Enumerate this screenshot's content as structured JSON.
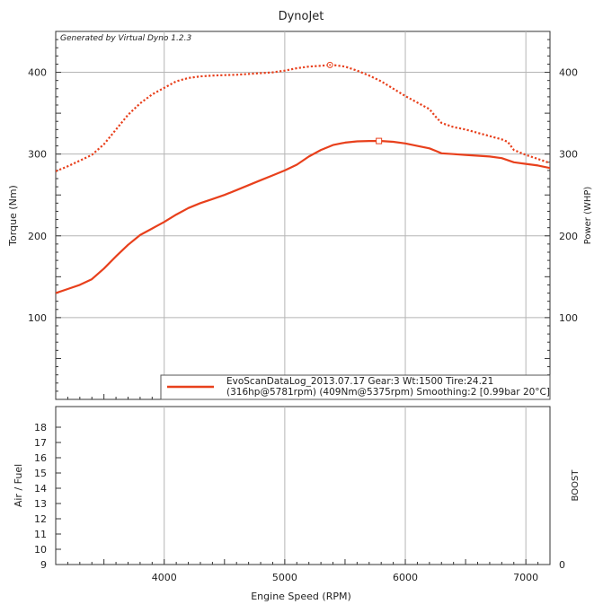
{
  "window": {
    "title": "DynoJet",
    "watermark": "Generated by Virtual Dyno 1.2.3"
  },
  "colors": {
    "series": "#e8401c",
    "grid": "#b5b5b5",
    "frame": "#333333",
    "legend_bg": "#ffffff"
  },
  "chart_data": [
    {
      "type": "line",
      "title": "DynoJet",
      "xlabel": "Engine Speed (RPM)",
      "ylabel_left": "Torque (Nm)",
      "ylabel_right": "Power (WHP)",
      "xlim": [
        3100,
        7200
      ],
      "ylim": [
        0,
        450
      ],
      "x_ticks": [
        4000,
        5000,
        6000,
        7000
      ],
      "y_ticks_left": [
        100,
        200,
        300,
        400
      ],
      "y_ticks_right": [
        100,
        200,
        300,
        400
      ],
      "grid": true,
      "legend_position": "bottom-right",
      "legend": {
        "line1": "EvoScanDataLog_2013.07.17 Gear:3 Wt:1500 Tire:24.21",
        "line2": "(316hp@5781rpm) (409Nm@5375rpm) Smoothing:2 [0.99bar 20°C]"
      },
      "series": [
        {
          "kind": "torque",
          "style": "dotted",
          "x": [
            3100,
            3200,
            3300,
            3400,
            3500,
            3600,
            3700,
            3800,
            3900,
            4000,
            4100,
            4200,
            4300,
            4400,
            4500,
            4600,
            4700,
            4800,
            4900,
            5000,
            5100,
            5200,
            5300,
            5375,
            5400,
            5500,
            5600,
            5700,
            5800,
            5900,
            6000,
            6100,
            6200,
            6250,
            6300,
            6400,
            6500,
            6600,
            6700,
            6800,
            6850,
            6900,
            7000,
            7100,
            7200
          ],
          "y": [
            279,
            285,
            292,
            299,
            312,
            330,
            348,
            362,
            373,
            381,
            389,
            393,
            395,
            396,
            396.5,
            397,
            398,
            399,
            400,
            402,
            405,
            407,
            408,
            409,
            409,
            407,
            402,
            396,
            389,
            380,
            371,
            363,
            355,
            346,
            338,
            333,
            330,
            326,
            322,
            318,
            315,
            305,
            299,
            294,
            289
          ]
        },
        {
          "kind": "power",
          "style": "solid",
          "x": [
            3100,
            3200,
            3300,
            3400,
            3500,
            3600,
            3700,
            3800,
            3900,
            4000,
            4100,
            4200,
            4300,
            4400,
            4500,
            4600,
            4700,
            4800,
            4900,
            5000,
            5100,
            5200,
            5300,
            5400,
            5500,
            5600,
            5700,
            5781,
            5800,
            5900,
            6000,
            6100,
            6200,
            6250,
            6300,
            6400,
            6500,
            6600,
            6700,
            6800,
            6900,
            7000,
            7100,
            7200
          ],
          "y": [
            130,
            135,
            140,
            147,
            160,
            175,
            189,
            201,
            209,
            217,
            226,
            234,
            240,
            245,
            250,
            256,
            262,
            268,
            274,
            280,
            287,
            297,
            305,
            311,
            314,
            315.5,
            316,
            316,
            316,
            315,
            313,
            310,
            307,
            304,
            301,
            300,
            299,
            298,
            297,
            295,
            290,
            288,
            286,
            283
          ]
        }
      ],
      "markers": [
        {
          "series": "torque",
          "x": 5375,
          "y": 409
        },
        {
          "series": "power",
          "x": 5781,
          "y": 316
        }
      ]
    },
    {
      "type": "line",
      "ylabel_left": "Air / Fuel",
      "ylabel_right": "BOOST",
      "xlim": [
        3100,
        7200
      ],
      "ylim": [
        9,
        19
      ],
      "x_ticks": [
        4000,
        5000,
        6000,
        7000
      ],
      "y_ticks_left": [
        9,
        10,
        11,
        12,
        13,
        14,
        15,
        16,
        17,
        18
      ],
      "y_ticks_right": [
        0
      ],
      "grid": true,
      "series": []
    }
  ]
}
